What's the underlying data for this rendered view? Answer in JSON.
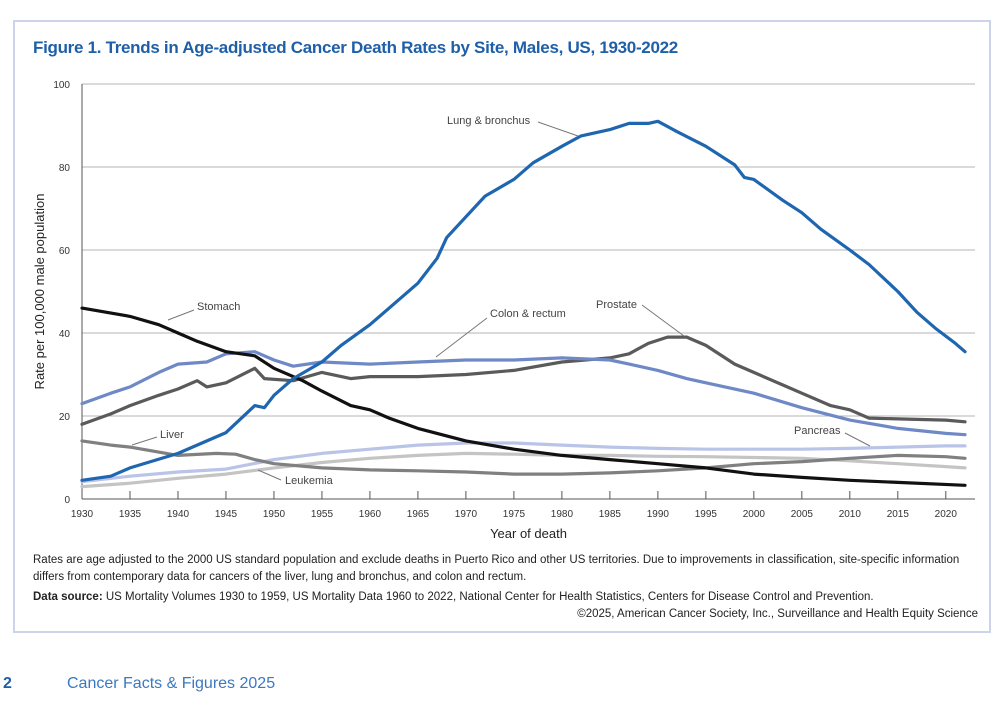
{
  "title": "Figure 1. Trends in Age-adjusted Cancer Death Rates by Site, Males, US, 1930-2022",
  "notes": {
    "line1": "Rates are age adjusted to the 2000 US standard population and exclude deaths in Puerto Rico and other US territories. Due to improvements in classification, site-specific information differs from contemporary data for cancers of the liver, lung and bronchus, and colon and rectum.",
    "source_label": "Data source:",
    "source_text": " US Mortality Volumes 1930 to 1959, US Mortality Data 1960 to 2022, National Center for Health Statistics, Centers for Disease Control and Prevention.",
    "copyright": "©2025, American Cancer Society, Inc., Surveillance and Health Equity Science"
  },
  "footer": {
    "page_number": "2",
    "publication": "Cancer Facts & Figures 2025"
  },
  "colors": {
    "title": "#1f5fa8",
    "frame": "#cdd3ea",
    "grid": "#b5b5b5"
  },
  "chart_data": {
    "type": "line",
    "xlabel": "Year of death",
    "ylabel": "Rate per 100,000 male population",
    "xlim": [
      1930,
      2022
    ],
    "ylim": [
      0,
      100
    ],
    "xticks": [
      1930,
      1935,
      1940,
      1945,
      1950,
      1955,
      1960,
      1965,
      1970,
      1975,
      1980,
      1985,
      1990,
      1995,
      2000,
      2005,
      2010,
      2015,
      2020
    ],
    "yticks": [
      0,
      20,
      40,
      60,
      80,
      100
    ],
    "grid": "horizontal",
    "legend": "inline labels",
    "series": [
      {
        "name": "Lung & bronchus",
        "color": "#1f66b0",
        "x": [
          1930,
          1933,
          1935,
          1940,
          1945,
          1948,
          1949,
          1950,
          1952,
          1955,
          1957,
          1960,
          1963,
          1965,
          1967,
          1968,
          1970,
          1972,
          1975,
          1977,
          1980,
          1982,
          1985,
          1987,
          1989,
          1990,
          1992,
          1995,
          1998,
          1999,
          2000,
          2003,
          2005,
          2007,
          2010,
          2012,
          2015,
          2017,
          2019,
          2021,
          2022
        ],
        "y": [
          4.5,
          5.5,
          7.5,
          11,
          16,
          22.5,
          22,
          25,
          29,
          33,
          37,
          42,
          48,
          52,
          58,
          63,
          68,
          73,
          77,
          81,
          85,
          87.5,
          89,
          90.5,
          90.5,
          91,
          88.5,
          85,
          80.5,
          77.5,
          77,
          72,
          69,
          65,
          60,
          56.5,
          50,
          45,
          41,
          37.5,
          35.5
        ]
      },
      {
        "name": "Stomach",
        "color": "#111111",
        "x": [
          1930,
          1935,
          1938,
          1940,
          1942,
          1945,
          1948,
          1950,
          1953,
          1955,
          1958,
          1960,
          1962,
          1965,
          1970,
          1975,
          1980,
          1985,
          1990,
          1995,
          2000,
          2005,
          2010,
          2015,
          2022
        ],
        "y": [
          46,
          44,
          42,
          40,
          38,
          35.5,
          34.5,
          31.5,
          28.5,
          26,
          22.5,
          21.5,
          19.5,
          17,
          14,
          12,
          10.5,
          9.5,
          8.5,
          7.5,
          6,
          5.2,
          4.5,
          4,
          3.3
        ]
      },
      {
        "name": "Colon & rectum",
        "color": "#6f88c6",
        "x": [
          1930,
          1933,
          1935,
          1938,
          1940,
          1943,
          1945,
          1948,
          1950,
          1952,
          1955,
          1960,
          1965,
          1970,
          1975,
          1980,
          1985,
          1987,
          1990,
          1993,
          1995,
          2000,
          2005,
          2010,
          2015,
          2020,
          2022
        ],
        "y": [
          23,
          25.5,
          27,
          30.5,
          32.5,
          33,
          35,
          35.5,
          33.5,
          32,
          33,
          32.5,
          33,
          33.5,
          33.5,
          34,
          33.5,
          32.5,
          31,
          29,
          28,
          25.5,
          22,
          19,
          17,
          15.8,
          15.5
        ]
      },
      {
        "name": "Prostate",
        "color": "#5a5a5a",
        "x": [
          1930,
          1933,
          1935,
          1938,
          1940,
          1942,
          1943,
          1945,
          1948,
          1949,
          1952,
          1955,
          1958,
          1960,
          1965,
          1970,
          1975,
          1980,
          1985,
          1987,
          1989,
          1991,
          1993,
          1995,
          1998,
          2000,
          2003,
          2005,
          2008,
          2010,
          2012,
          2015,
          2020,
          2022
        ],
        "y": [
          18,
          20.5,
          22.5,
          25,
          26.5,
          28.5,
          27,
          28,
          31.5,
          29,
          28.5,
          30.5,
          29,
          29.5,
          29.5,
          30,
          31,
          33,
          34,
          35,
          37.5,
          39,
          39,
          37,
          32.5,
          30.5,
          27.5,
          25.5,
          22.5,
          21.5,
          19.5,
          19.3,
          19,
          18.6
        ]
      },
      {
        "name": "Liver",
        "color": "#808080",
        "x": [
          1930,
          1933,
          1935,
          1940,
          1944,
          1946,
          1948,
          1950,
          1955,
          1960,
          1965,
          1970,
          1975,
          1980,
          1985,
          1990,
          1995,
          2000,
          2005,
          2010,
          2015,
          2020,
          2022
        ],
        "y": [
          14,
          13,
          12.5,
          10.5,
          11,
          10.8,
          9.5,
          8.5,
          7.5,
          7,
          6.8,
          6.5,
          6,
          6,
          6.3,
          6.8,
          7.5,
          8.5,
          9,
          9.8,
          10.5,
          10.2,
          9.8
        ]
      },
      {
        "name": "Leukemia",
        "color": "#c4c4c4",
        "x": [
          1930,
          1935,
          1940,
          1945,
          1950,
          1955,
          1960,
          1965,
          1970,
          1975,
          1980,
          1985,
          1990,
          1995,
          2000,
          2005,
          2010,
          2015,
          2020,
          2022
        ],
        "y": [
          3,
          3.8,
          5,
          6,
          7.5,
          8.8,
          9.8,
          10.5,
          11,
          10.8,
          10.5,
          10.5,
          10.3,
          10.2,
          10,
          9.8,
          9.2,
          8.5,
          7.8,
          7.5
        ]
      },
      {
        "name": "Pancreas",
        "color": "#bac4e8",
        "x": [
          1930,
          1935,
          1940,
          1945,
          1950,
          1955,
          1960,
          1965,
          1970,
          1975,
          1980,
          1985,
          1990,
          1995,
          2000,
          2005,
          2010,
          2015,
          2020,
          2022
        ],
        "y": [
          4.2,
          5.5,
          6.5,
          7.2,
          9.5,
          11,
          12,
          13,
          13.5,
          13.5,
          13,
          12.5,
          12.2,
          12,
          12,
          12,
          12.2,
          12.5,
          12.8,
          12.8
        ]
      }
    ]
  }
}
